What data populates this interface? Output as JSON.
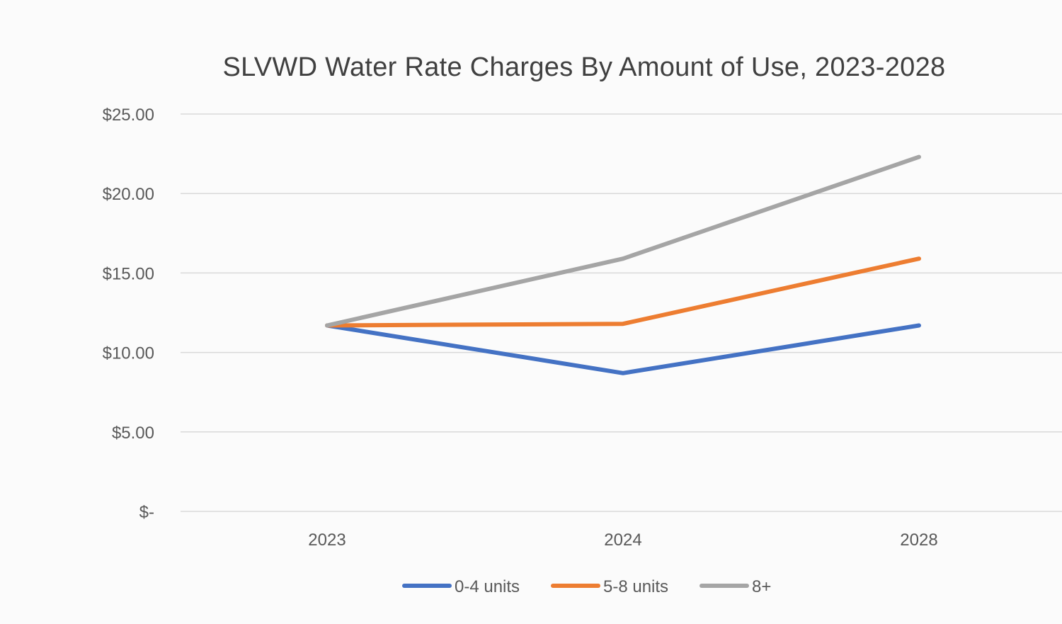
{
  "chart_data": {
    "type": "line",
    "title": "SLVWD Water Rate Charges By Amount of Use, 2023-2028",
    "xlabel": "",
    "ylabel": "",
    "categories": [
      "2023",
      "2024",
      "2028"
    ],
    "ylim": [
      0,
      25
    ],
    "yticks": [
      0,
      5,
      10,
      15,
      20,
      25
    ],
    "ytick_labels": [
      "$-",
      "$5.00",
      "$10.00",
      "$15.00",
      "$20.00",
      "$25.00"
    ],
    "grid": true,
    "legend_position": "bottom",
    "series": [
      {
        "name": "0-4 units",
        "color": "#4472c4",
        "values": [
          11.7,
          8.7,
          11.7
        ]
      },
      {
        "name": "5-8 units",
        "color": "#ed7d31",
        "values": [
          11.7,
          11.8,
          15.9
        ]
      },
      {
        "name": "8+",
        "color": "#a5a5a5",
        "values": [
          11.7,
          15.9,
          22.3
        ]
      }
    ]
  }
}
